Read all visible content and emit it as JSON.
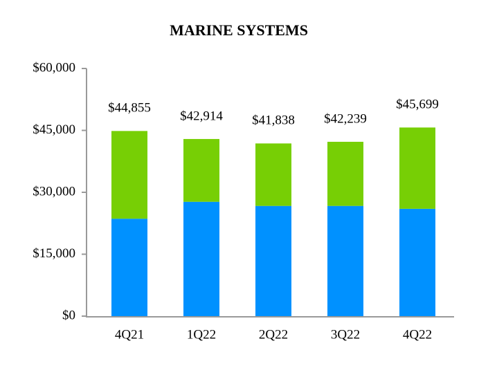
{
  "chart_data": {
    "type": "stacked-bar",
    "title": "MARINE SYSTEMS",
    "categories": [
      "4Q21",
      "1Q22",
      "2Q22",
      "3Q22",
      "4Q22"
    ],
    "series": [
      {
        "color": "#0091ff",
        "values": [
          23600,
          27700,
          26700,
          26700,
          26000
        ]
      },
      {
        "color": "#77cf05",
        "values": [
          21255,
          15214,
          15138,
          15539,
          19699
        ]
      }
    ],
    "totals": {
      "values": [
        44855,
        42914,
        41838,
        42239,
        45699
      ],
      "value_labels": [
        "$44,855",
        "$42,914",
        "$41,838",
        "$42,239",
        "$45,699"
      ]
    },
    "ylim": [
      0,
      60000
    ],
    "yticks": [
      {
        "value": 0,
        "label": "$0"
      },
      {
        "value": 15000,
        "label": "$15,000"
      },
      {
        "value": 30000,
        "label": "$30,000"
      },
      {
        "value": 45000,
        "label": "$45,000"
      },
      {
        "value": 60000,
        "label": "$60,000"
      }
    ],
    "grid": false
  }
}
